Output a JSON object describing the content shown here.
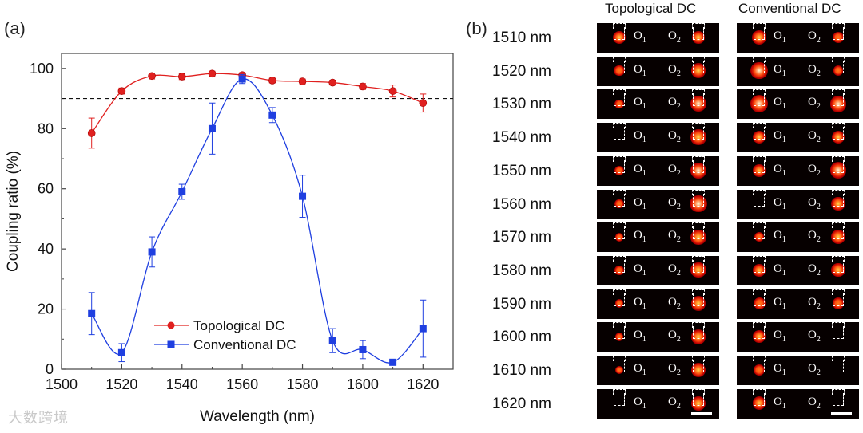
{
  "panel_a_label": "(a)",
  "panel_b_label": "(b)",
  "watermark_text": "大数跨境",
  "chart_data": {
    "type": "line",
    "xlabel": "Wavelength (nm)",
    "ylabel": "Coupling ratio (%)",
    "xlim": [
      1500,
      1630
    ],
    "ylim": [
      0,
      105
    ],
    "xticks": [
      1500,
      1520,
      1540,
      1560,
      1580,
      1600,
      1620
    ],
    "yticks": [
      0,
      20,
      40,
      60,
      80,
      100
    ],
    "reference_line": 90,
    "x": [
      1510,
      1520,
      1530,
      1540,
      1550,
      1560,
      1570,
      1580,
      1590,
      1600,
      1610,
      1620
    ],
    "series": [
      {
        "name": "Topological DC",
        "color": "#e0201f",
        "marker": "circle",
        "values": [
          78.5,
          92.5,
          97.5,
          97.3,
          98.3,
          97.8,
          96.0,
          95.7,
          95.3,
          94.0,
          92.5,
          88.5
        ],
        "errors": [
          5.0,
          1.0,
          1.0,
          1.0,
          0.8,
          0.8,
          0.8,
          0.8,
          0.8,
          1.0,
          2.0,
          3.0
        ]
      },
      {
        "name": "Conventional DC",
        "color": "#1f3fe0",
        "marker": "square",
        "values": [
          18.5,
          5.5,
          39.0,
          59.0,
          80.0,
          96.5,
          84.5,
          57.5,
          9.5,
          6.5,
          2.3,
          13.5
        ],
        "errors": [
          7.0,
          3.0,
          5.0,
          2.5,
          8.5,
          1.5,
          2.5,
          7.0,
          4.0,
          3.0,
          0.5,
          9.5
        ]
      }
    ]
  },
  "panel_b": {
    "column_titles": [
      "Topological DC",
      "Conventional DC"
    ],
    "wavelength_unit": "nm",
    "port_label_1": "O",
    "port_sub_1": "1",
    "port_label_2": "O",
    "port_sub_2": "2",
    "rows": [
      {
        "wavelength": "1510",
        "topo": [
          0.6,
          0.55
        ],
        "conv": [
          0.75,
          0.45
        ]
      },
      {
        "wavelength": "1520",
        "topo": [
          0.4,
          0.75
        ],
        "conv": [
          0.95,
          0.35
        ]
      },
      {
        "wavelength": "1530",
        "topo": [
          0.25,
          0.85
        ],
        "conv": [
          1.0,
          0.9
        ]
      },
      {
        "wavelength": "1540",
        "topo": [
          0.0,
          0.8
        ],
        "conv": [
          0.6,
          0.6
        ]
      },
      {
        "wavelength": "1550",
        "topo": [
          0.3,
          0.85
        ],
        "conv": [
          0.55,
          0.9
        ]
      },
      {
        "wavelength": "1560",
        "topo": [
          0.25,
          0.95
        ],
        "conv": [
          0.0,
          0.7
        ]
      },
      {
        "wavelength": "1570",
        "topo": [
          0.2,
          0.8
        ],
        "conv": [
          0.3,
          0.75
        ]
      },
      {
        "wavelength": "1580",
        "topo": [
          0.25,
          0.8
        ],
        "conv": [
          0.55,
          0.65
        ]
      },
      {
        "wavelength": "1590",
        "topo": [
          0.2,
          0.75
        ],
        "conv": [
          0.5,
          0.45
        ]
      },
      {
        "wavelength": "1600",
        "topo": [
          0.2,
          0.75
        ],
        "conv": [
          0.55,
          0.0
        ]
      },
      {
        "wavelength": "1610",
        "topo": [
          0.15,
          0.7
        ],
        "conv": [
          0.45,
          0.0
        ]
      },
      {
        "wavelength": "1620",
        "topo": [
          0.0,
          0.7
        ],
        "conv": [
          0.6,
          0.0
        ]
      }
    ]
  }
}
